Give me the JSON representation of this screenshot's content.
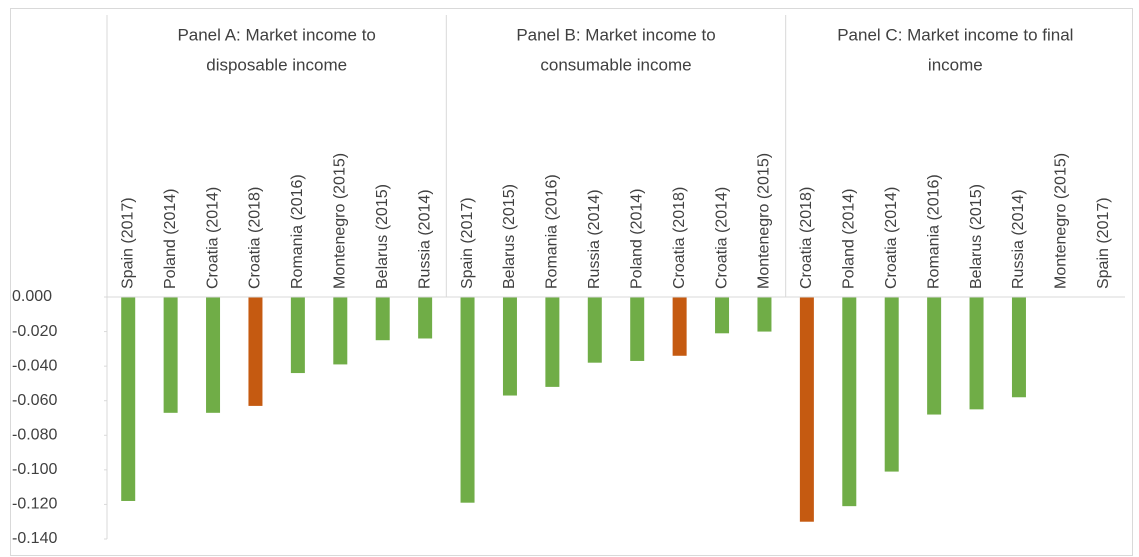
{
  "chart_data": {
    "type": "bar",
    "ylim": [
      -0.14,
      0
    ],
    "yticks": [
      {
        "value": 0,
        "label": "0.000"
      },
      {
        "value": -0.02,
        "label": "-0.020"
      },
      {
        "value": -0.04,
        "label": "-0.040"
      },
      {
        "value": -0.06,
        "label": "-0.060"
      },
      {
        "value": -0.08,
        "label": "-0.080"
      },
      {
        "value": -0.1,
        "label": "-0.100"
      },
      {
        "value": -0.12,
        "label": "-0.120"
      },
      {
        "value": -0.14,
        "label": "-0.140"
      }
    ],
    "panels": [
      {
        "title_lines": [
          "Panel A: Market income to",
          "disposable income"
        ],
        "categories": [
          "Spain (2017)",
          "Poland (2014)",
          "Croatia (2014)",
          "Croatia (2018)",
          "Romania (2016)",
          "Montenegro (2015)",
          "Belarus (2015)",
          "Russia (2014)"
        ],
        "values": [
          -0.118,
          -0.067,
          -0.067,
          -0.063,
          -0.044,
          -0.039,
          -0.025,
          -0.024
        ],
        "colors": [
          "#70ad47",
          "#70ad47",
          "#70ad47",
          "#c55a11",
          "#70ad47",
          "#70ad47",
          "#70ad47",
          "#70ad47"
        ]
      },
      {
        "title_lines": [
          "Panel B: Market income to",
          "consumable income"
        ],
        "categories": [
          "Spain (2017)",
          "Belarus (2015)",
          "Romania (2016)",
          "Russia (2014)",
          "Poland (2014)",
          "Croatia (2018)",
          "Croatia (2014)",
          "Montenegro (2015)"
        ],
        "values": [
          -0.119,
          -0.057,
          -0.052,
          -0.038,
          -0.037,
          -0.034,
          -0.021,
          -0.02
        ],
        "colors": [
          "#70ad47",
          "#70ad47",
          "#70ad47",
          "#70ad47",
          "#70ad47",
          "#c55a11",
          "#70ad47",
          "#70ad47"
        ]
      },
      {
        "title_lines": [
          "Panel C: Market income to final",
          "income"
        ],
        "categories": [
          "Croatia (2018)",
          "Poland (2014)",
          "Croatia (2014)",
          "Romania (2016)",
          "Belarus (2015)",
          "Russia (2014)",
          "Montenegro (2015)",
          "Spain (2017)"
        ],
        "values": [
          -0.13,
          -0.121,
          -0.101,
          -0.068,
          -0.065,
          -0.058,
          null,
          null
        ],
        "colors": [
          "#c55a11",
          "#70ad47",
          "#70ad47",
          "#70ad47",
          "#70ad47",
          "#70ad47",
          "#70ad47",
          "#70ad47"
        ]
      }
    ]
  }
}
